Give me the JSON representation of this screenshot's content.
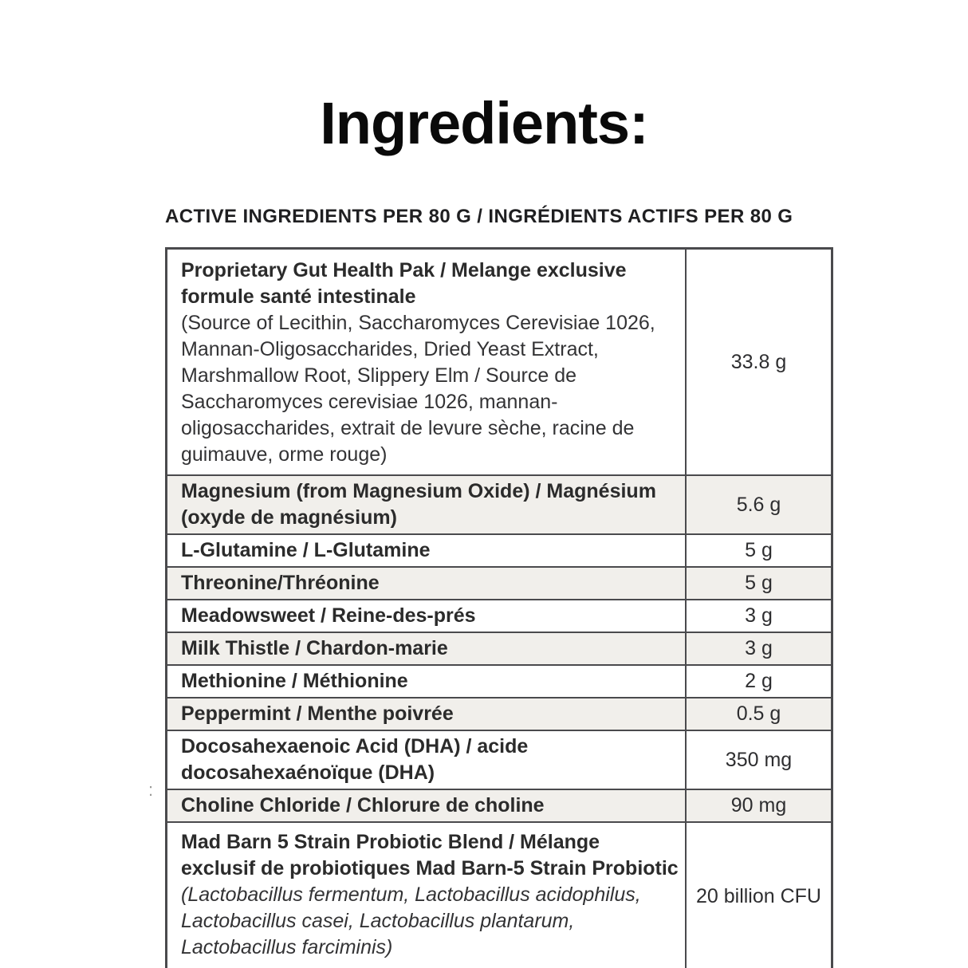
{
  "page": {
    "title": "Ingredients:",
    "stray_mark": ":"
  },
  "table": {
    "header": "ACTIVE INGREDIENTS PER 80 G / INGRÉDIENTS ACTIFS PER 80 G",
    "columns": [
      "ingredient",
      "amount"
    ],
    "rows": [
      {
        "segments": [
          {
            "style": "bold",
            "text": "Proprietary Gut Health Pak / Melange exclusive formule santé intestinale"
          },
          {
            "style": "regular",
            "text": "(Source of Lecithin, Saccharomyces Cerevisiae 1026, Mannan-Oligosaccharides, Dried Yeast Extract, Marshmallow Root, Slippery Elm / Source de Saccharomyces cerevisiae 1026, mannan-oligosaccharides, extrait de levure sèche, racine de guimauve, orme rouge)"
          }
        ],
        "amount": "33.8 g"
      },
      {
        "segments": [
          {
            "style": "bold",
            "text": "Magnesium (from Magnesium Oxide) / Magnésium (oxyde de magnésium)"
          }
        ],
        "amount": "5.6 g"
      },
      {
        "segments": [
          {
            "style": "bold",
            "text": "L-Glutamine / L-Glutamine"
          }
        ],
        "amount": "5 g"
      },
      {
        "segments": [
          {
            "style": "bold",
            "text": "Threonine/Thréonine"
          }
        ],
        "amount": "5 g"
      },
      {
        "segments": [
          {
            "style": "bold",
            "text": "Meadowsweet / Reine-des-prés"
          }
        ],
        "amount": "3 g"
      },
      {
        "segments": [
          {
            "style": "bold",
            "text": "Milk Thistle / Chardon-marie"
          }
        ],
        "amount": "3 g"
      },
      {
        "segments": [
          {
            "style": "bold",
            "text": "Methionine / Méthionine"
          }
        ],
        "amount": "2 g"
      },
      {
        "segments": [
          {
            "style": "bold",
            "text": "Peppermint / Menthe poivrée"
          }
        ],
        "amount": "0.5 g"
      },
      {
        "segments": [
          {
            "style": "bold",
            "text": "Docosahexaenoic Acid (DHA) / acide docosahexaénoïque (DHA)"
          }
        ],
        "amount": "350 mg"
      },
      {
        "segments": [
          {
            "style": "bold",
            "text": "Choline Chloride / Chlorure de choline"
          }
        ],
        "amount": "90 mg"
      },
      {
        "segments": [
          {
            "style": "bold",
            "text": "Mad Barn 5 Strain Probiotic Blend / Mélange exclusif de probiotiques Mad Barn-5 Strain Probiotic"
          },
          {
            "style": "italic",
            "text": "(Lactobacillus fermentum, Lactobacillus acidophilus, Lactobacillus casei, Lactobacillus plantarum, Lactobacillus farciminis)"
          }
        ],
        "amount": "20 billion CFU"
      }
    ]
  },
  "colors": {
    "shaded_row": "#f1efeb",
    "border": "#4a4a4d",
    "text": "#2b2b2b",
    "background": "#ffffff"
  }
}
